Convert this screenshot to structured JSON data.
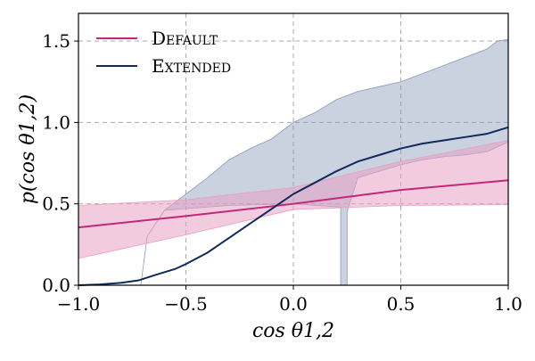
{
  "chart_data": {
    "type": "line",
    "xlabel": "cos θ1,2",
    "ylabel": "p(cos θ1,2)",
    "xlim": [
      -1.0,
      1.0
    ],
    "ylim": [
      0.0,
      1.67
    ],
    "x_ticks": [
      -1.0,
      -0.5,
      0.0,
      0.5,
      1.0
    ],
    "x_tick_labels": [
      "−1.0",
      "−0.5",
      "0.0",
      "0.5",
      "1.0"
    ],
    "y_ticks": [
      0.0,
      0.5,
      1.0,
      1.5
    ],
    "y_tick_labels": [
      "0.0",
      "0.5",
      "1.0",
      "1.5"
    ],
    "grid": "dashed",
    "legend_position": "top-left",
    "series": [
      {
        "name": "Default",
        "color": "#c2287a",
        "band_color": "#e8a0c4",
        "x": [
          -1.0,
          -0.5,
          0.0,
          0.5,
          1.0
        ],
        "values": [
          0.355,
          0.425,
          0.5,
          0.585,
          0.645
        ],
        "band_lower": [
          0.165,
          0.31,
          0.465,
          0.49,
          0.495
        ],
        "band_upper": [
          0.49,
          0.525,
          0.6,
          0.76,
          0.89
        ]
      },
      {
        "name": "Extended",
        "color": "#0f2a5c",
        "band_color": "#8a98b8",
        "x": [
          -1.0,
          -0.9,
          -0.8,
          -0.72,
          -0.65,
          -0.55,
          -0.5,
          -0.4,
          -0.3,
          -0.2,
          -0.1,
          0.0,
          0.1,
          0.2,
          0.3,
          0.4,
          0.5,
          0.6,
          0.7,
          0.8,
          0.9,
          1.0
        ],
        "values": [
          0.0,
          0.005,
          0.015,
          0.03,
          0.06,
          0.1,
          0.13,
          0.2,
          0.29,
          0.38,
          0.47,
          0.56,
          0.63,
          0.7,
          0.76,
          0.8,
          0.84,
          0.87,
          0.89,
          0.91,
          0.93,
          0.97
        ],
        "band_x": [
          -0.71,
          -0.68,
          -0.6,
          -0.5,
          -0.4,
          -0.3,
          -0.2,
          -0.1,
          0.0,
          0.1,
          0.2,
          0.3,
          0.4,
          0.5,
          0.6,
          0.7,
          0.8,
          0.9,
          0.95,
          1.0
        ],
        "band_lower": [
          0.0,
          0.3,
          0.46,
          0.47,
          0.48,
          0.49,
          0.5,
          0.5,
          0.5,
          0.5,
          0.5,
          0.66,
          0.7,
          0.74,
          0.77,
          0.79,
          0.8,
          0.82,
          0.85,
          0.88
        ],
        "band_upper": [
          0.0,
          0.3,
          0.46,
          0.56,
          0.66,
          0.77,
          0.84,
          0.9,
          1.0,
          1.06,
          1.14,
          1.19,
          1.22,
          1.25,
          1.3,
          1.35,
          1.4,
          1.45,
          1.5,
          1.51
        ],
        "band_bottom_extent_x": [
          0.22,
          0.25
        ]
      }
    ]
  }
}
